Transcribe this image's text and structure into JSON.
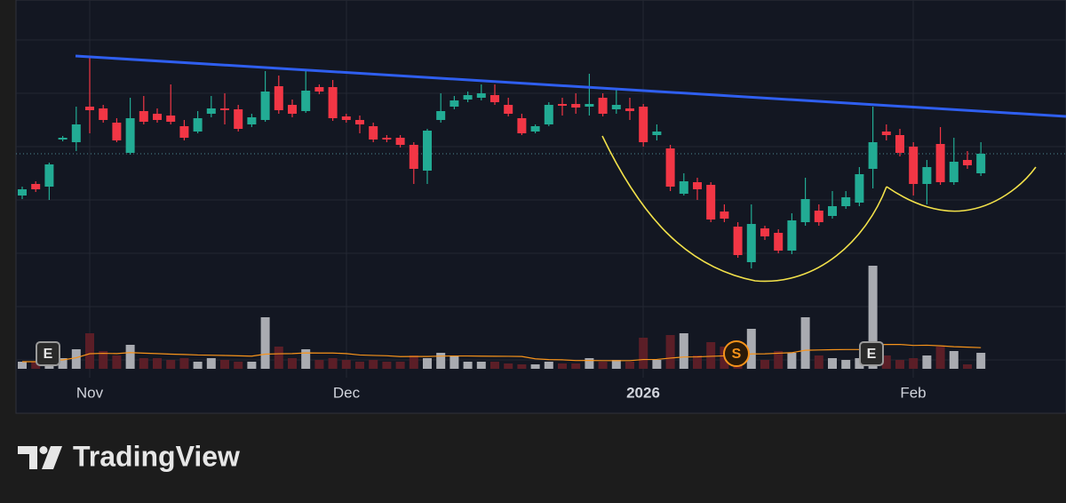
{
  "chart_data": {
    "type": "candlestick",
    "open": [
      230,
      243,
      240,
      293,
      290,
      330,
      328,
      312,
      278,
      325,
      322,
      320,
      308,
      302,
      322,
      328,
      327,
      310,
      315,
      353,
      332,
      325,
      352,
      352,
      319,
      315,
      308,
      295,
      295,
      287,
      258,
      315,
      330,
      338,
      340,
      343,
      332,
      317,
      302,
      310,
      333,
      333,
      330,
      340,
      327,
      328,
      330,
      298,
      283,
      232,
      245,
      242,
      212,
      195,
      155,
      193,
      188,
      168,
      200,
      213,
      207,
      218,
      222,
      260,
      302,
      298,
      285,
      243,
      288,
      245,
      270,
      255
    ],
    "high": [
      240,
      246,
      267,
      297,
      330,
      385,
      332,
      317,
      340,
      342,
      328,
      355,
      315,
      325,
      342,
      345,
      332,
      322,
      370,
      365,
      338,
      370,
      355,
      360,
      322,
      320,
      312,
      298,
      298,
      290,
      305,
      345,
      342,
      347,
      355,
      355,
      340,
      322,
      310,
      335,
      340,
      345,
      367,
      345,
      350,
      340,
      333,
      310,
      287,
      255,
      250,
      245,
      220,
      200,
      220,
      196,
      192,
      210,
      250,
      220,
      235,
      235,
      262,
      330,
      310,
      305,
      290,
      270,
      307,
      295,
      280,
      290
    ],
    "low": [
      226,
      234,
      225,
      291,
      280,
      300,
      312,
      290,
      276,
      310,
      312,
      310,
      292,
      300,
      318,
      310,
      302,
      307,
      313,
      322,
      318,
      323,
      344,
      314,
      312,
      300,
      290,
      290,
      284,
      243,
      243,
      312,
      327,
      335,
      337,
      332,
      319,
      298,
      300,
      308,
      320,
      322,
      320,
      319,
      322,
      315,
      285,
      292,
      235,
      230,
      225,
      200,
      200,
      160,
      148,
      180,
      165,
      164,
      196,
      196,
      204,
      215,
      218,
      238,
      292,
      274,
      230,
      220,
      242,
      242,
      260,
      252
    ],
    "close": [
      237,
      237,
      265,
      295,
      310,
      326,
      315,
      292,
      317,
      313,
      315,
      313,
      295,
      317,
      328,
      326,
      305,
      318,
      347,
      326,
      322,
      348,
      347,
      317,
      315,
      310,
      293,
      293,
      287,
      260,
      303,
      325,
      337,
      343,
      345,
      335,
      322,
      300,
      308,
      332,
      331,
      329,
      333,
      322,
      332,
      325,
      290,
      302,
      240,
      246,
      237,
      203,
      204,
      163,
      198,
      184,
      168,
      202,
      226,
      200,
      218,
      228,
      254,
      290,
      298,
      278,
      243,
      262,
      245,
      268,
      264,
      277
    ],
    "volume": [
      8,
      8,
      12,
      12,
      22,
      40,
      20,
      15,
      27,
      12,
      12,
      10,
      12,
      8,
      12,
      10,
      8,
      8,
      58,
      25,
      12,
      22,
      10,
      12,
      10,
      8,
      10,
      8,
      8,
      15,
      12,
      18,
      15,
      8,
      8,
      8,
      6,
      5,
      5,
      8,
      6,
      6,
      12,
      8,
      10,
      8,
      35,
      10,
      38,
      40,
      15,
      30,
      25,
      15,
      45,
      10,
      20,
      18,
      58,
      15,
      12,
      10,
      12,
      116,
      15,
      10,
      12,
      15,
      25,
      20,
      5,
      18
    ],
    "ylim": [
      40,
      430
    ],
    "vlim": [
      0,
      120
    ],
    "up_color": "#22ab94",
    "down_color": "#f23645",
    "volume_up_color": "#a9abb1",
    "volume_down_color": "#5b1e27",
    "x_axis_labels": [
      "Nov",
      "Dec",
      "2026",
      "Feb"
    ],
    "event_markers": [
      "E",
      "S",
      "E"
    ]
  },
  "footer": {
    "brand": "TradingView"
  }
}
